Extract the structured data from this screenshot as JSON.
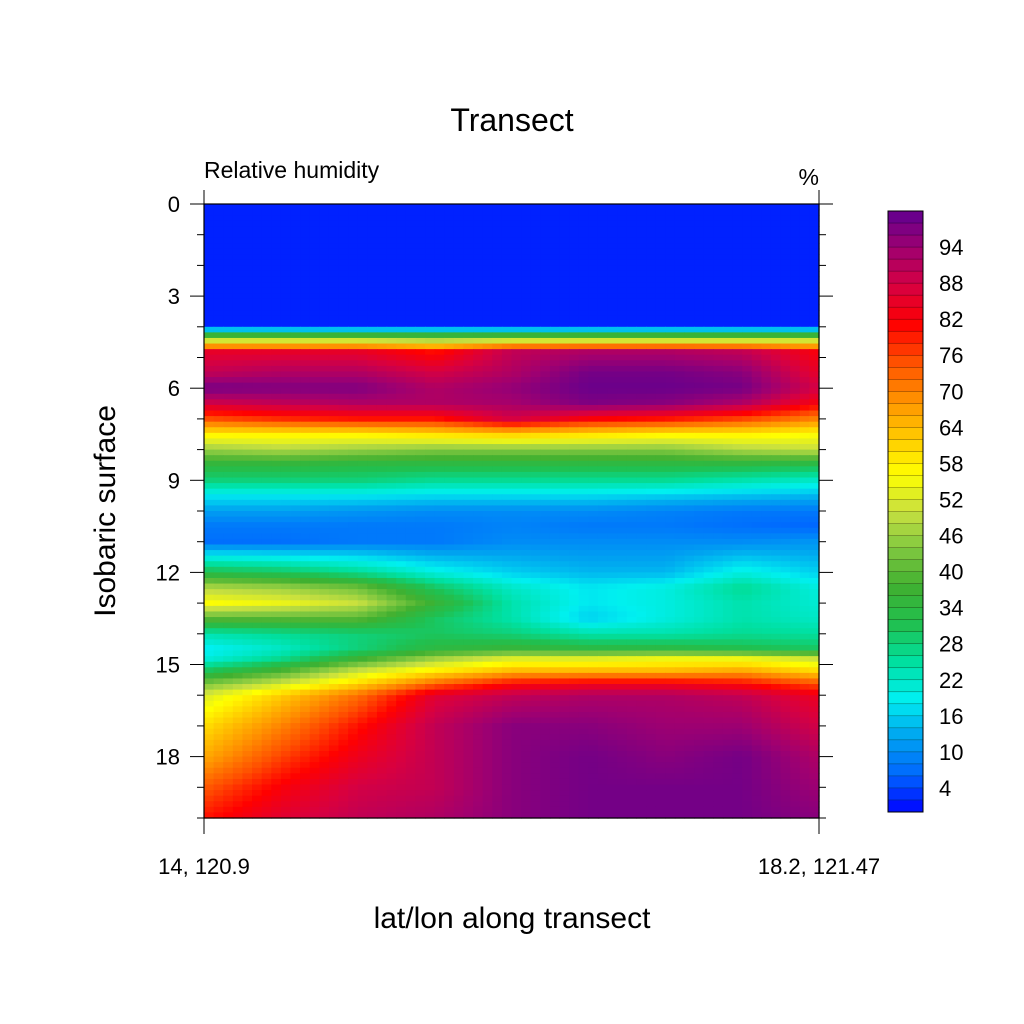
{
  "chart_data": {
    "type": "heatmap",
    "title": "Transect",
    "subtitle_left": "Relative humidity",
    "subtitle_right": "%",
    "xlabel": "lat/lon along transect",
    "ylabel": "Isobaric surface",
    "x_tick_labels": [
      "14, 120.9",
      "18.2, 121.47"
    ],
    "y_range": [
      0,
      20
    ],
    "y_reversed": true,
    "y_tick_labels": [
      "0",
      "3",
      "6",
      "9",
      "12",
      "15",
      "18"
    ],
    "y_tick_values": [
      0,
      3,
      6,
      9,
      12,
      15,
      18
    ],
    "colorbar_range": [
      0,
      100
    ],
    "colorbar_labels": [
      "4",
      "10",
      "16",
      "22",
      "28",
      "34",
      "40",
      "46",
      "52",
      "58",
      "64",
      "70",
      "76",
      "82",
      "88",
      "94"
    ],
    "colormap": [
      "#0000ff",
      "#0068ff",
      "#00a4f0",
      "#00f0f0",
      "#00e0a0",
      "#20c050",
      "#40b030",
      "#80c840",
      "#c8e040",
      "#ffff00",
      "#ffc800",
      "#ff9000",
      "#ff5000",
      "#ff0000",
      "#d80040",
      "#a00070",
      "#600090"
    ],
    "x_positions": [
      0,
      0.125,
      0.25,
      0.375,
      0.5,
      0.625,
      0.75,
      0.875,
      1
    ],
    "levels": [
      0,
      4,
      4.2,
      4.5,
      4.8,
      5.5,
      6,
      6.5,
      7,
      7.5,
      8,
      8.5,
      9,
      9.5,
      10,
      10.5,
      11,
      12,
      12.5,
      13,
      13.5,
      14,
      14.5,
      14.8,
      15.2,
      15.6,
      16,
      17,
      18,
      19,
      20
    ],
    "values": [
      [
        2,
        2,
        2,
        2,
        2,
        2,
        2,
        2,
        2
      ],
      [
        2,
        2,
        2,
        2,
        2,
        2,
        2,
        2,
        2
      ],
      [
        30,
        30,
        30,
        30,
        30,
        30,
        30,
        30,
        30
      ],
      [
        55,
        55,
        55,
        52,
        55,
        55,
        55,
        55,
        55
      ],
      [
        85,
        85,
        85,
        80,
        90,
        92,
        92,
        90,
        82
      ],
      [
        90,
        92,
        92,
        88,
        92,
        98,
        98,
        96,
        85
      ],
      [
        98,
        97,
        97,
        92,
        95,
        99,
        99,
        98,
        88
      ],
      [
        88,
        90,
        92,
        92,
        93,
        97,
        96,
        92,
        82
      ],
      [
        75,
        78,
        80,
        80,
        88,
        82,
        80,
        76,
        70
      ],
      [
        58,
        58,
        58,
        60,
        62,
        60,
        58,
        58,
        56
      ],
      [
        46,
        48,
        46,
        44,
        44,
        44,
        44,
        48,
        50
      ],
      [
        34,
        34,
        33,
        33,
        33,
        33,
        33,
        33,
        32
      ],
      [
        28,
        28,
        28,
        26,
        26,
        26,
        26,
        24,
        22
      ],
      [
        18,
        18,
        18,
        17,
        17,
        17,
        16,
        15,
        14
      ],
      [
        12,
        12,
        11,
        10,
        10,
        10,
        9,
        8,
        8
      ],
      [
        8,
        8,
        8,
        8,
        9,
        8,
        8,
        7,
        6
      ],
      [
        7,
        7,
        8,
        8,
        10,
        10,
        10,
        10,
        11
      ],
      [
        32,
        30,
        26,
        20,
        16,
        14,
        14,
        20,
        16
      ],
      [
        48,
        46,
        42,
        30,
        22,
        18,
        20,
        26,
        20
      ],
      [
        56,
        54,
        50,
        36,
        24,
        18,
        20,
        24,
        21
      ],
      [
        40,
        40,
        40,
        30,
        24,
        16,
        20,
        24,
        22
      ],
      [
        24,
        26,
        28,
        30,
        28,
        24,
        24,
        26,
        25
      ],
      [
        18,
        22,
        28,
        34,
        36,
        34,
        34,
        32,
        30
      ],
      [
        20,
        26,
        36,
        46,
        52,
        52,
        54,
        54,
        50
      ],
      [
        30,
        38,
        50,
        58,
        64,
        64,
        64,
        66,
        60
      ],
      [
        42,
        50,
        60,
        72,
        80,
        82,
        82,
        80,
        74
      ],
      [
        52,
        62,
        72,
        86,
        90,
        92,
        92,
        90,
        84
      ],
      [
        60,
        70,
        80,
        90,
        96,
        96,
        94,
        94,
        88
      ],
      [
        66,
        76,
        84,
        90,
        96,
        98,
        96,
        98,
        92
      ],
      [
        74,
        82,
        88,
        90,
        96,
        98,
        98,
        98,
        94
      ],
      [
        80,
        86,
        90,
        92,
        96,
        98,
        98,
        98,
        96
      ]
    ]
  }
}
